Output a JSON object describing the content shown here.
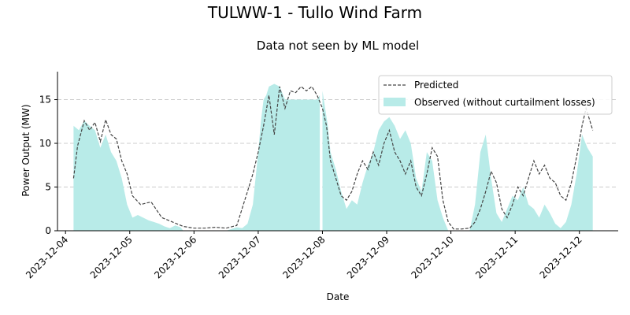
{
  "chart_data": {
    "type": "area",
    "title": "TULWW-1 - Tullo Wind Farm",
    "subtitle": "Data not seen by ML model",
    "xlabel": "Date",
    "ylabel": "Power Output (MW)",
    "ylim": [
      0,
      18.2
    ],
    "yticks": [
      0,
      5,
      10,
      15
    ],
    "xlim": [
      "2023-12-03T21:00",
      "2023-12-12T14:30"
    ],
    "xticks": [
      "2023-12-04",
      "2023-12-05",
      "2023-12-06",
      "2023-12-07",
      "2023-12-08",
      "2023-12-09",
      "2023-12-10",
      "2023-12-11",
      "2023-12-12"
    ],
    "grid": "y dashed",
    "legend_position": "top-right",
    "colors": {
      "observed": "#b8ebe8",
      "predicted": "#444444"
    },
    "series": [
      {
        "name": "Predicted",
        "style": "dashed-line",
        "points": [
          [
            "2023-12-04T03:00",
            6.0
          ],
          [
            "2023-12-04T04:30",
            9.7
          ],
          [
            "2023-12-04T07:00",
            12.6
          ],
          [
            "2023-12-04T09:00",
            11.5
          ],
          [
            "2023-12-04T11:00",
            12.4
          ],
          [
            "2023-12-04T13:00",
            10.2
          ],
          [
            "2023-12-04T15:00",
            12.7
          ],
          [
            "2023-12-04T17:00",
            11.0
          ],
          [
            "2023-12-04T19:00",
            10.5
          ],
          [
            "2023-12-04T21:00",
            8.0
          ],
          [
            "2023-12-04T23:00",
            6.5
          ],
          [
            "2023-12-05T01:00",
            4.0
          ],
          [
            "2023-12-05T04:00",
            3.0
          ],
          [
            "2023-12-05T08:00",
            3.3
          ],
          [
            "2023-12-05T12:00",
            1.5
          ],
          [
            "2023-12-05T16:00",
            1.0
          ],
          [
            "2023-12-05T20:00",
            0.5
          ],
          [
            "2023-12-06T00:00",
            0.3
          ],
          [
            "2023-12-06T04:00",
            0.3
          ],
          [
            "2023-12-06T08:00",
            0.4
          ],
          [
            "2023-12-06T12:00",
            0.3
          ],
          [
            "2023-12-06T16:00",
            0.6
          ],
          [
            "2023-12-06T20:00",
            4.5
          ],
          [
            "2023-12-06T22:00",
            6.5
          ],
          [
            "2023-12-07T00:00",
            9.0
          ],
          [
            "2023-12-07T02:00",
            12.0
          ],
          [
            "2023-12-07T04:00",
            15.5
          ],
          [
            "2023-12-07T06:00",
            11.0
          ],
          [
            "2023-12-07T08:00",
            16.5
          ],
          [
            "2023-12-07T10:00",
            14.0
          ],
          [
            "2023-12-07T12:00",
            16.0
          ],
          [
            "2023-12-07T14:00",
            15.8
          ],
          [
            "2023-12-07T16:00",
            16.5
          ],
          [
            "2023-12-07T18:00",
            16.0
          ],
          [
            "2023-12-07T20:00",
            16.5
          ],
          [
            "2023-12-07T22:00",
            15.5
          ],
          [
            "2023-12-08T00:00",
            14.0
          ],
          [
            "2023-12-08T01:30",
            12.0
          ],
          [
            "2023-12-08T03:00",
            8.0
          ],
          [
            "2023-12-08T05:00",
            6.0
          ],
          [
            "2023-12-08T07:00",
            4.0
          ],
          [
            "2023-12-08T09:00",
            3.5
          ],
          [
            "2023-12-08T11:00",
            4.5
          ],
          [
            "2023-12-08T13:00",
            6.5
          ],
          [
            "2023-12-08T15:00",
            8.0
          ],
          [
            "2023-12-08T17:00",
            7.0
          ],
          [
            "2023-12-08T19:00",
            9.0
          ],
          [
            "2023-12-08T21:00",
            7.5
          ],
          [
            "2023-12-08T23:00",
            10.0
          ],
          [
            "2023-12-09T01:00",
            11.5
          ],
          [
            "2023-12-09T03:00",
            9.0
          ],
          [
            "2023-12-09T05:00",
            8.0
          ],
          [
            "2023-12-09T07:00",
            6.5
          ],
          [
            "2023-12-09T09:00",
            8.0
          ],
          [
            "2023-12-09T11:00",
            5.0
          ],
          [
            "2023-12-09T13:00",
            4.0
          ],
          [
            "2023-12-09T15:00",
            6.5
          ],
          [
            "2023-12-09T17:00",
            9.5
          ],
          [
            "2023-12-09T19:00",
            8.5
          ],
          [
            "2023-12-09T21:00",
            3.5
          ],
          [
            "2023-12-09T23:00",
            1.0
          ],
          [
            "2023-12-10T01:00",
            0.2
          ],
          [
            "2023-12-10T04:00",
            0.2
          ],
          [
            "2023-12-10T07:00",
            0.3
          ],
          [
            "2023-12-10T09:00",
            1.0
          ],
          [
            "2023-12-10T11:00",
            2.5
          ],
          [
            "2023-12-10T13:00",
            4.5
          ],
          [
            "2023-12-10T15:00",
            6.8
          ],
          [
            "2023-12-10T17:00",
            5.5
          ],
          [
            "2023-12-10T19:00",
            2.5
          ],
          [
            "2023-12-10T21:00",
            1.5
          ],
          [
            "2023-12-10T23:00",
            3.0
          ],
          [
            "2023-12-11T01:00",
            5.0
          ],
          [
            "2023-12-11T03:00",
            4.0
          ],
          [
            "2023-12-11T05:00",
            6.0
          ],
          [
            "2023-12-11T07:00",
            8.0
          ],
          [
            "2023-12-11T09:00",
            6.5
          ],
          [
            "2023-12-11T11:00",
            7.5
          ],
          [
            "2023-12-11T13:00",
            6.0
          ],
          [
            "2023-12-11T15:00",
            5.5
          ],
          [
            "2023-12-11T17:00",
            4.0
          ],
          [
            "2023-12-11T19:00",
            3.5
          ],
          [
            "2023-12-11T21:00",
            5.5
          ],
          [
            "2023-12-11T23:00",
            8.5
          ],
          [
            "2023-12-12T01:00",
            12.0
          ],
          [
            "2023-12-12T02:30",
            14.0
          ],
          [
            "2023-12-12T04:00",
            12.5
          ],
          [
            "2023-12-12T05:00",
            11.5
          ]
        ]
      },
      {
        "name": "Observed (without curtailment losses)",
        "style": "filled-area",
        "segments": [
          [
            [
              "2023-12-04T03:00",
              0
            ],
            [
              "2023-12-04T03:00",
              12.0
            ],
            [
              "2023-12-04T05:00",
              11.5
            ],
            [
              "2023-12-04T07:00",
              12.6
            ],
            [
              "2023-12-04T09:00",
              12.0
            ],
            [
              "2023-12-04T11:00",
              11.5
            ],
            [
              "2023-12-04T13:00",
              9.5
            ],
            [
              "2023-12-04T15:00",
              11.0
            ],
            [
              "2023-12-04T17:00",
              9.0
            ],
            [
              "2023-12-04T19:00",
              8.0
            ],
            [
              "2023-12-04T21:00",
              6.0
            ],
            [
              "2023-12-04T23:00",
              3.0
            ],
            [
              "2023-12-05T01:00",
              1.5
            ],
            [
              "2023-12-05T03:00",
              1.8
            ],
            [
              "2023-12-05T05:00",
              1.5
            ],
            [
              "2023-12-05T07:00",
              1.2
            ],
            [
              "2023-12-05T09:00",
              1.0
            ],
            [
              "2023-12-05T11:00",
              0.8
            ],
            [
              "2023-12-05T13:00",
              0.5
            ],
            [
              "2023-12-05T15:00",
              0.3
            ],
            [
              "2023-12-05T17:00",
              0.6
            ],
            [
              "2023-12-05T19:00",
              0.4
            ],
            [
              "2023-12-05T20:00",
              0
            ]
          ],
          [
            [
              "2023-12-06T12:00",
              0
            ],
            [
              "2023-12-06T14:00",
              0.2
            ],
            [
              "2023-12-06T16:00",
              0.4
            ],
            [
              "2023-12-06T18:00",
              0.3
            ],
            [
              "2023-12-06T20:00",
              0.8
            ],
            [
              "2023-12-06T22:00",
              3.0
            ],
            [
              "2023-12-06T23:00",
              6.0
            ],
            [
              "2023-12-07T00:00",
              9.0
            ],
            [
              "2023-12-07T01:00",
              12.5
            ],
            [
              "2023-12-07T02:00",
              15.0
            ],
            [
              "2023-12-07T03:00",
              15.5
            ],
            [
              "2023-12-07T04:00",
              16.5
            ],
            [
              "2023-12-07T06:00",
              16.8
            ],
            [
              "2023-12-07T08:00",
              16.5
            ],
            [
              "2023-12-07T10:00",
              15.0
            ],
            [
              "2023-12-07T16:00",
              15.0
            ],
            [
              "2023-12-07T22:00",
              15.0
            ],
            [
              "2023-12-07T23:00",
              15.5
            ],
            [
              "2023-12-07T23:00",
              0
            ]
          ],
          [
            [
              "2023-12-08T00:00",
              0
            ],
            [
              "2023-12-08T00:00",
              16.0
            ],
            [
              "2023-12-08T01:00",
              14.0
            ],
            [
              "2023-12-08T02:00",
              12.0
            ],
            [
              "2023-12-08T03:00",
              9.0
            ],
            [
              "2023-12-08T05:00",
              7.0
            ],
            [
              "2023-12-08T07:00",
              4.5
            ],
            [
              "2023-12-08T09:00",
              2.5
            ],
            [
              "2023-12-08T11:00",
              3.5
            ],
            [
              "2023-12-08T13:00",
              3.0
            ],
            [
              "2023-12-08T15:00",
              5.5
            ],
            [
              "2023-12-08T17:00",
              7.5
            ],
            [
              "2023-12-08T19:00",
              9.0
            ],
            [
              "2023-12-08T21:00",
              11.5
            ],
            [
              "2023-12-08T23:00",
              12.5
            ],
            [
              "2023-12-09T01:00",
              13.0
            ],
            [
              "2023-12-09T03:00",
              12.0
            ],
            [
              "2023-12-09T05:00",
              10.5
            ],
            [
              "2023-12-09T07:00",
              11.5
            ],
            [
              "2023-12-09T09:00",
              10.0
            ],
            [
              "2023-12-09T11:00",
              6.0
            ],
            [
              "2023-12-09T13:00",
              4.5
            ],
            [
              "2023-12-09T15:00",
              9.0
            ],
            [
              "2023-12-09T17:00",
              8.0
            ],
            [
              "2023-12-09T19:00",
              3.5
            ],
            [
              "2023-12-09T21:00",
              1.5
            ],
            [
              "2023-12-09T23:00",
              0
            ]
          ],
          [
            [
              "2023-12-10T07:00",
              0
            ],
            [
              "2023-12-10T09:00",
              3.0
            ],
            [
              "2023-12-10T11:00",
              9.0
            ],
            [
              "2023-12-10T13:00",
              11.0
            ],
            [
              "2023-12-10T15:00",
              6.0
            ],
            [
              "2023-12-10T17:00",
              2.0
            ],
            [
              "2023-12-10T19:00",
              1.0
            ],
            [
              "2023-12-10T21:00",
              2.5
            ],
            [
              "2023-12-10T23:00",
              4.0
            ],
            [
              "2023-12-11T01:00",
              3.5
            ],
            [
              "2023-12-11T03:00",
              5.0
            ],
            [
              "2023-12-11T05:00",
              3.0
            ],
            [
              "2023-12-11T07:00",
              2.5
            ],
            [
              "2023-12-11T09:00",
              1.5
            ],
            [
              "2023-12-11T11:00",
              3.0
            ],
            [
              "2023-12-11T13:00",
              2.0
            ],
            [
              "2023-12-11T15:00",
              0.8
            ],
            [
              "2023-12-11T17:00",
              0.3
            ],
            [
              "2023-12-11T19:00",
              1.0
            ],
            [
              "2023-12-11T21:00",
              3.0
            ],
            [
              "2023-12-11T23:00",
              6.5
            ],
            [
              "2023-12-12T01:00",
              11.0
            ],
            [
              "2023-12-12T03:00",
              9.5
            ],
            [
              "2023-12-12T05:00",
              8.5
            ],
            [
              "2023-12-12T05:00",
              0
            ]
          ]
        ]
      }
    ]
  }
}
